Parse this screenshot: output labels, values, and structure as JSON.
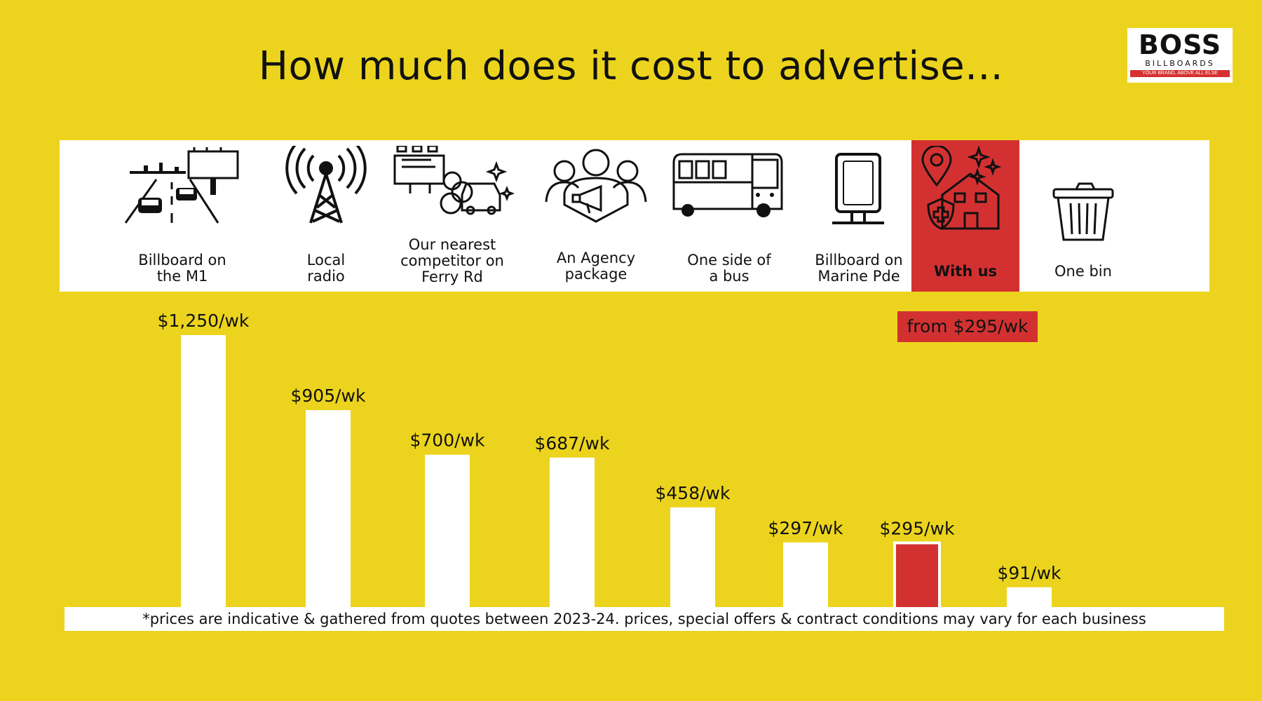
{
  "title": "How much does it cost to advertise...",
  "logo": {
    "brand": "BOSS",
    "sub": "BILLBOARDS",
    "tagline": "YOUR BRAND, ABOVE ALL ELSE"
  },
  "colors": {
    "background": "#ecd41e",
    "bar": "#ffffff",
    "highlight": "#d33131",
    "text": "#111111"
  },
  "options": [
    {
      "label": "Billboard on\nthe M1",
      "icon": "highway-billboard-icon"
    },
    {
      "label": "Local\nradio",
      "icon": "radio-tower-icon"
    },
    {
      "label": "Our nearest\ncompetitor on\nFerry Rd",
      "icon": "competitor-billboard-icon"
    },
    {
      "label": "An Agency\npackage",
      "icon": "agency-team-icon"
    },
    {
      "label": "One side of\na bus",
      "icon": "bus-icon"
    },
    {
      "label": "Billboard on\nMarine Pde",
      "icon": "digital-sign-icon"
    },
    {
      "label": "With us",
      "icon": "local-business-icon"
    },
    {
      "label": "One bin",
      "icon": "trash-bin-icon"
    }
  ],
  "highlight_badge": "from $295/wk",
  "chart_data": {
    "type": "bar",
    "categories": [
      "Billboard on the M1",
      "Local radio",
      "Our nearest competitor on Ferry Rd",
      "An Agency package",
      "One side of a bus",
      "Billboard on Marine Pde",
      "With us",
      "One bin"
    ],
    "values": [
      1250,
      905,
      700,
      687,
      458,
      297,
      295,
      91
    ],
    "value_labels": [
      "$1,250/wk",
      "$905/wk",
      "$700/wk",
      "$687/wk",
      "$458/wk",
      "$297/wk",
      "$295/wk",
      "$91/wk"
    ],
    "highlight_index": 6,
    "unit": "$/wk",
    "axes_visible": false,
    "grid": false
  },
  "footnote": "*prices are indicative & gathered from quotes between 2023-24. prices, special offers & contract conditions may vary for each business"
}
